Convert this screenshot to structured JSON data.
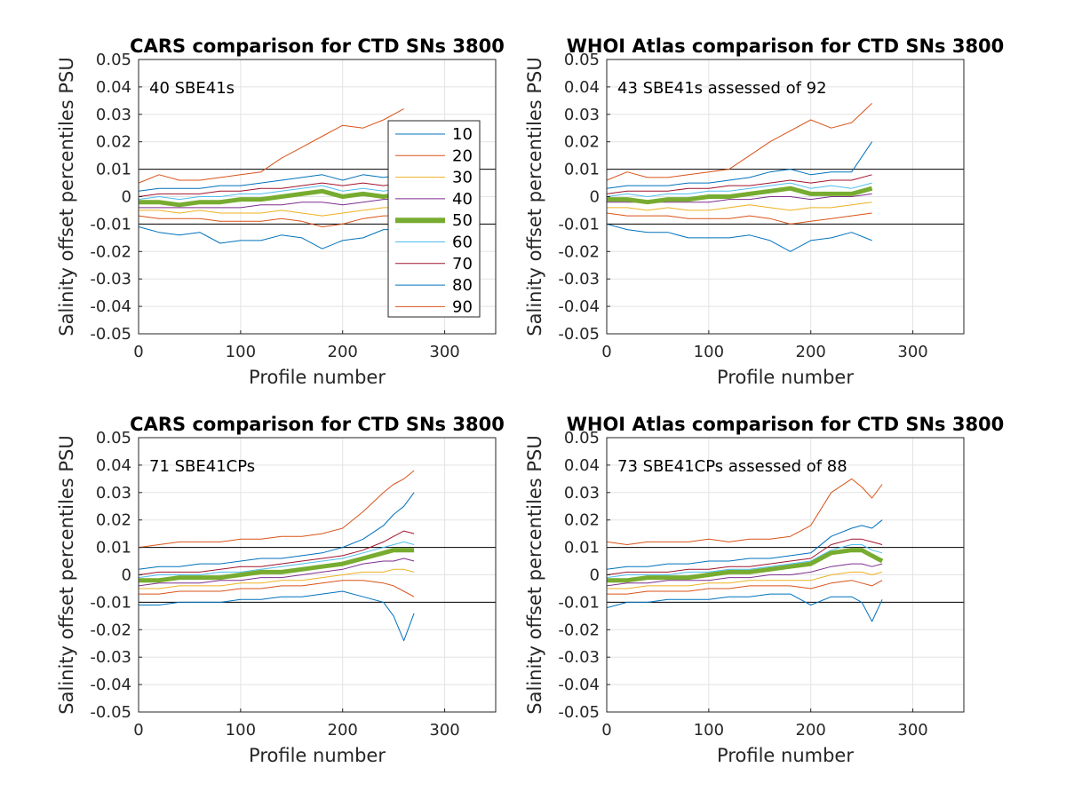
{
  "chart_data": [
    {
      "type": "line",
      "title": "CARS comparison for CTD SNs 3800",
      "xlabel": "Profile number",
      "ylabel": "Salinity offset percentiles PSU",
      "annotation": "40 SBE41s",
      "xlim": [
        0,
        350
      ],
      "ylim": [
        -0.05,
        0.05
      ],
      "xticks": [
        "0",
        "100",
        "200",
        "300"
      ],
      "yticks": [
        "-0.05",
        "-0.04",
        "-0.03",
        "-0.02",
        "-0.01",
        "0",
        "0.01",
        "0.02",
        "0.03",
        "0.04",
        "0.05"
      ],
      "grid": true,
      "reference_lines": [
        0.01,
        -0.01
      ],
      "legend": {
        "placement": "inside-right",
        "entries": [
          "10",
          "20",
          "30",
          "40",
          "50",
          "60",
          "70",
          "80",
          "90"
        ]
      },
      "x": [
        0,
        20,
        40,
        60,
        80,
        100,
        120,
        140,
        160,
        180,
        200,
        220,
        240,
        260
      ],
      "series": [
        {
          "name": "10",
          "color": "#0072BD",
          "values": [
            -0.011,
            -0.013,
            -0.014,
            -0.013,
            -0.017,
            -0.016,
            -0.016,
            -0.014,
            -0.015,
            -0.019,
            -0.016,
            -0.015,
            -0.012,
            -0.012
          ]
        },
        {
          "name": "20",
          "color": "#D95319",
          "values": [
            -0.007,
            -0.008,
            -0.008,
            -0.008,
            -0.009,
            -0.009,
            -0.009,
            -0.008,
            -0.009,
            -0.011,
            -0.01,
            -0.008,
            -0.007,
            -0.007
          ]
        },
        {
          "name": "30",
          "color": "#EDB120",
          "values": [
            -0.005,
            -0.005,
            -0.006,
            -0.005,
            -0.006,
            -0.006,
            -0.006,
            -0.005,
            -0.006,
            -0.007,
            -0.006,
            -0.005,
            -0.004,
            -0.004
          ]
        },
        {
          "name": "40",
          "color": "#7E2F8E",
          "values": [
            -0.004,
            -0.004,
            -0.004,
            -0.004,
            -0.004,
            -0.004,
            -0.003,
            -0.003,
            -0.002,
            -0.002,
            -0.003,
            -0.002,
            -0.001,
            -0.001
          ]
        },
        {
          "name": "50",
          "color": "#77AC30",
          "values": [
            -0.002,
            -0.002,
            -0.003,
            -0.002,
            -0.002,
            -0.001,
            -0.001,
            0.0,
            0.001,
            0.002,
            0.0,
            0.001,
            0.0,
            0.001
          ]
        },
        {
          "name": "60",
          "color": "#4DBEEE",
          "values": [
            -0.001,
            0.0,
            -0.001,
            0.0,
            0.0,
            0.001,
            0.001,
            0.002,
            0.003,
            0.004,
            0.002,
            0.003,
            0.002,
            0.003
          ]
        },
        {
          "name": "70",
          "color": "#A2142F",
          "values": [
            0.0,
            0.001,
            0.001,
            0.001,
            0.002,
            0.002,
            0.003,
            0.003,
            0.004,
            0.005,
            0.004,
            0.005,
            0.004,
            0.005
          ]
        },
        {
          "name": "80",
          "color": "#0072BD",
          "values": [
            0.002,
            0.003,
            0.003,
            0.003,
            0.004,
            0.004,
            0.005,
            0.006,
            0.007,
            0.008,
            0.006,
            0.008,
            0.007,
            0.008
          ]
        },
        {
          "name": "90",
          "color": "#D95319",
          "values": [
            0.005,
            0.008,
            0.006,
            0.006,
            0.007,
            0.008,
            0.009,
            0.014,
            0.018,
            0.022,
            0.026,
            0.025,
            0.028,
            0.032
          ]
        }
      ]
    },
    {
      "type": "line",
      "title": "WHOI Atlas comparison for CTD SNs 3800",
      "xlabel": "Profile number",
      "ylabel": "Salinity offset percentiles PSU",
      "annotation": "43 SBE41s assessed of 92",
      "xlim": [
        0,
        350
      ],
      "ylim": [
        -0.05,
        0.05
      ],
      "xticks": [
        "0",
        "100",
        "200",
        "300"
      ],
      "yticks": [
        "-0.05",
        "-0.04",
        "-0.03",
        "-0.02",
        "-0.01",
        "0",
        "0.01",
        "0.02",
        "0.03",
        "0.04",
        "0.05"
      ],
      "grid": true,
      "reference_lines": [
        0.01,
        -0.01
      ],
      "x": [
        0,
        20,
        40,
        60,
        80,
        100,
        120,
        140,
        160,
        180,
        200,
        220,
        240,
        260
      ],
      "series": [
        {
          "name": "10",
          "color": "#0072BD",
          "values": [
            -0.01,
            -0.012,
            -0.013,
            -0.013,
            -0.015,
            -0.015,
            -0.015,
            -0.014,
            -0.016,
            -0.02,
            -0.016,
            -0.015,
            -0.013,
            -0.016
          ]
        },
        {
          "name": "20",
          "color": "#D95319",
          "values": [
            -0.006,
            -0.007,
            -0.007,
            -0.007,
            -0.008,
            -0.008,
            -0.008,
            -0.007,
            -0.008,
            -0.01,
            -0.009,
            -0.008,
            -0.007,
            -0.006
          ]
        },
        {
          "name": "30",
          "color": "#EDB120",
          "values": [
            -0.004,
            -0.004,
            -0.005,
            -0.004,
            -0.005,
            -0.005,
            -0.004,
            -0.003,
            -0.004,
            -0.005,
            -0.004,
            -0.004,
            -0.003,
            -0.002
          ]
        },
        {
          "name": "40",
          "color": "#7E2F8E",
          "values": [
            -0.002,
            -0.002,
            -0.002,
            -0.002,
            -0.002,
            -0.002,
            -0.001,
            -0.001,
            0.0,
            0.0,
            -0.001,
            0.0,
            0.0,
            0.001
          ]
        },
        {
          "name": "50",
          "color": "#77AC30",
          "values": [
            -0.001,
            -0.001,
            -0.002,
            -0.001,
            -0.001,
            0.0,
            0.0,
            0.001,
            0.002,
            0.003,
            0.001,
            0.001,
            0.001,
            0.003
          ]
        },
        {
          "name": "60",
          "color": "#4DBEEE",
          "values": [
            0.0,
            0.001,
            0.0,
            0.001,
            0.001,
            0.002,
            0.002,
            0.003,
            0.004,
            0.005,
            0.003,
            0.004,
            0.003,
            0.005
          ]
        },
        {
          "name": "70",
          "color": "#A2142F",
          "values": [
            0.001,
            0.002,
            0.002,
            0.002,
            0.003,
            0.003,
            0.004,
            0.004,
            0.005,
            0.006,
            0.005,
            0.006,
            0.006,
            0.008
          ]
        },
        {
          "name": "80",
          "color": "#0072BD",
          "values": [
            0.003,
            0.004,
            0.004,
            0.004,
            0.005,
            0.005,
            0.006,
            0.007,
            0.009,
            0.01,
            0.008,
            0.009,
            0.009,
            0.02
          ]
        },
        {
          "name": "90",
          "color": "#D95319",
          "values": [
            0.006,
            0.009,
            0.007,
            0.007,
            0.008,
            0.009,
            0.01,
            0.015,
            0.02,
            0.024,
            0.028,
            0.025,
            0.027,
            0.034
          ]
        }
      ]
    },
    {
      "type": "line",
      "title": "CARS comparison for CTD SNs 3800",
      "xlabel": "Profile number",
      "ylabel": "Salinity offset percentiles PSU",
      "annotation": "71 SBE41CPs",
      "xlim": [
        0,
        350
      ],
      "ylim": [
        -0.05,
        0.05
      ],
      "xticks": [
        "0",
        "100",
        "200",
        "300"
      ],
      "yticks": [
        "-0.05",
        "-0.04",
        "-0.03",
        "-0.02",
        "-0.01",
        "0",
        "0.01",
        "0.02",
        "0.03",
        "0.04",
        "0.05"
      ],
      "grid": true,
      "reference_lines": [
        0.01,
        -0.01
      ],
      "x": [
        0,
        20,
        40,
        60,
        80,
        100,
        120,
        140,
        160,
        180,
        200,
        220,
        240,
        250,
        260,
        270
      ],
      "series": [
        {
          "name": "10",
          "color": "#0072BD",
          "values": [
            -0.011,
            -0.011,
            -0.01,
            -0.01,
            -0.01,
            -0.009,
            -0.009,
            -0.008,
            -0.008,
            -0.007,
            -0.006,
            -0.008,
            -0.01,
            -0.015,
            -0.024,
            -0.014
          ]
        },
        {
          "name": "20",
          "color": "#D95319",
          "values": [
            -0.007,
            -0.007,
            -0.006,
            -0.006,
            -0.006,
            -0.005,
            -0.005,
            -0.004,
            -0.004,
            -0.003,
            -0.002,
            -0.002,
            -0.003,
            -0.004,
            -0.006,
            -0.008
          ]
        },
        {
          "name": "30",
          "color": "#EDB120",
          "values": [
            -0.005,
            -0.005,
            -0.004,
            -0.004,
            -0.004,
            -0.003,
            -0.003,
            -0.002,
            -0.002,
            -0.001,
            0.0,
            0.001,
            0.001,
            0.002,
            0.002,
            0.001
          ]
        },
        {
          "name": "40",
          "color": "#7E2F8E",
          "values": [
            -0.004,
            -0.003,
            -0.003,
            -0.003,
            -0.002,
            -0.002,
            -0.001,
            -0.001,
            0.0,
            0.001,
            0.002,
            0.004,
            0.005,
            0.005,
            0.006,
            0.005
          ]
        },
        {
          "name": "50",
          "color": "#77AC30",
          "values": [
            -0.002,
            -0.002,
            -0.001,
            -0.001,
            -0.001,
            0.0,
            0.001,
            0.001,
            0.002,
            0.003,
            0.004,
            0.006,
            0.008,
            0.009,
            0.009,
            0.009
          ]
        },
        {
          "name": "60",
          "color": "#4DBEEE",
          "values": [
            -0.001,
            0.0,
            0.0,
            0.0,
            0.001,
            0.001,
            0.002,
            0.003,
            0.004,
            0.005,
            0.006,
            0.008,
            0.01,
            0.011,
            0.012,
            0.011
          ]
        },
        {
          "name": "70",
          "color": "#A2142F",
          "values": [
            0.0,
            0.001,
            0.001,
            0.001,
            0.002,
            0.003,
            0.003,
            0.004,
            0.005,
            0.006,
            0.007,
            0.009,
            0.012,
            0.014,
            0.016,
            0.015
          ]
        },
        {
          "name": "80",
          "color": "#0072BD",
          "values": [
            0.002,
            0.003,
            0.003,
            0.004,
            0.004,
            0.005,
            0.006,
            0.006,
            0.007,
            0.008,
            0.01,
            0.013,
            0.018,
            0.022,
            0.025,
            0.03
          ]
        },
        {
          "name": "90",
          "color": "#D95319",
          "values": [
            0.01,
            0.011,
            0.012,
            0.012,
            0.012,
            0.013,
            0.013,
            0.014,
            0.014,
            0.015,
            0.017,
            0.023,
            0.03,
            0.033,
            0.035,
            0.038
          ]
        }
      ]
    },
    {
      "type": "line",
      "title": "WHOI Atlas comparison for CTD SNs 3800",
      "xlabel": "Profile number",
      "ylabel": "Salinity offset percentiles PSU",
      "annotation": "73 SBE41CPs assessed of 88",
      "xlim": [
        0,
        350
      ],
      "ylim": [
        -0.05,
        0.05
      ],
      "xticks": [
        "0",
        "100",
        "200",
        "300"
      ],
      "yticks": [
        "-0.05",
        "-0.04",
        "-0.03",
        "-0.02",
        "-0.01",
        "0",
        "0.01",
        "0.02",
        "0.03",
        "0.04",
        "0.05"
      ],
      "grid": true,
      "reference_lines": [
        0.01,
        -0.01
      ],
      "x": [
        0,
        20,
        40,
        60,
        80,
        100,
        120,
        140,
        160,
        180,
        200,
        220,
        240,
        250,
        260,
        270
      ],
      "series": [
        {
          "name": "10",
          "color": "#0072BD",
          "values": [
            -0.012,
            -0.01,
            -0.01,
            -0.009,
            -0.009,
            -0.009,
            -0.008,
            -0.008,
            -0.007,
            -0.007,
            -0.011,
            -0.008,
            -0.008,
            -0.01,
            -0.017,
            -0.009
          ]
        },
        {
          "name": "20",
          "color": "#D95319",
          "values": [
            -0.007,
            -0.007,
            -0.006,
            -0.006,
            -0.006,
            -0.005,
            -0.005,
            -0.004,
            -0.004,
            -0.004,
            -0.005,
            -0.003,
            -0.002,
            -0.003,
            -0.004,
            -0.002
          ]
        },
        {
          "name": "30",
          "color": "#EDB120",
          "values": [
            -0.005,
            -0.005,
            -0.004,
            -0.004,
            -0.004,
            -0.003,
            -0.003,
            -0.002,
            -0.002,
            -0.002,
            -0.002,
            0.0,
            0.001,
            0.001,
            0.0,
            0.001
          ]
        },
        {
          "name": "40",
          "color": "#7E2F8E",
          "values": [
            -0.004,
            -0.003,
            -0.003,
            -0.002,
            -0.002,
            -0.002,
            -0.001,
            -0.001,
            0.0,
            0.0,
            0.001,
            0.003,
            0.004,
            0.004,
            0.003,
            0.004
          ]
        },
        {
          "name": "50",
          "color": "#77AC30",
          "values": [
            -0.002,
            -0.002,
            -0.001,
            -0.001,
            -0.001,
            0.0,
            0.001,
            0.001,
            0.002,
            0.003,
            0.004,
            0.008,
            0.009,
            0.009,
            0.007,
            0.005
          ]
        },
        {
          "name": "60",
          "color": "#4DBEEE",
          "values": [
            -0.001,
            0.0,
            0.0,
            0.0,
            0.001,
            0.001,
            0.002,
            0.002,
            0.003,
            0.004,
            0.005,
            0.009,
            0.011,
            0.011,
            0.009,
            0.008
          ]
        },
        {
          "name": "70",
          "color": "#A2142F",
          "values": [
            0.0,
            0.001,
            0.001,
            0.001,
            0.002,
            0.002,
            0.003,
            0.003,
            0.004,
            0.005,
            0.006,
            0.011,
            0.013,
            0.013,
            0.012,
            0.011
          ]
        },
        {
          "name": "80",
          "color": "#0072BD",
          "values": [
            0.002,
            0.003,
            0.003,
            0.004,
            0.004,
            0.005,
            0.005,
            0.006,
            0.006,
            0.007,
            0.008,
            0.014,
            0.017,
            0.018,
            0.017,
            0.02
          ]
        },
        {
          "name": "90",
          "color": "#D95319",
          "values": [
            0.012,
            0.011,
            0.012,
            0.012,
            0.012,
            0.013,
            0.012,
            0.013,
            0.013,
            0.014,
            0.018,
            0.03,
            0.035,
            0.032,
            0.028,
            0.033
          ]
        }
      ]
    }
  ]
}
